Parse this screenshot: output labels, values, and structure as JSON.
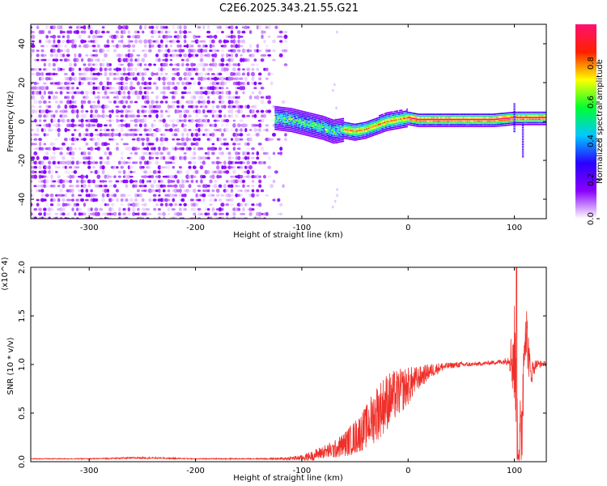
{
  "title": "C2E6.2025.343.21.55.G21",
  "chart_data": [
    {
      "type": "heatmap",
      "name": "spectrogram",
      "xlabel": "Height of straight line (km)",
      "ylabel": "Frequency (Hz)",
      "xlim": [
        -355,
        130
      ],
      "ylim": [
        -50,
        50
      ],
      "xticks": [
        -300,
        -200,
        -100,
        0,
        100
      ],
      "yticks": [
        -40,
        -20,
        0,
        20,
        40
      ],
      "colorbar": {
        "label": "Normalized spectral amplitude",
        "range": [
          0,
          1
        ],
        "ticks": [
          "0.0",
          "0.2",
          "0.4",
          "0.6",
          "0.8"
        ],
        "tick_values": [
          0.0,
          0.2,
          0.4,
          0.6,
          0.8
        ],
        "colormap": [
          "#ffffff",
          "#8a00ff",
          "#2a00ff",
          "#00c8ff",
          "#00ff30",
          "#ffff00",
          "#ff2000",
          "#ff1070"
        ]
      },
      "ridge": {
        "x": [
          -125,
          -110,
          -95,
          -80,
          -70,
          -60,
          -50,
          -40,
          -30,
          -20,
          -10,
          0,
          10,
          20,
          40,
          60,
          80,
          100,
          110,
          130
        ],
        "freq": [
          2,
          1,
          -1,
          -3,
          -5,
          -4,
          -5,
          -4,
          -2,
          0,
          1,
          2,
          1,
          1,
          1,
          1,
          1,
          2,
          2,
          2
        ]
      },
      "noise_region": {
        "x_from": -355,
        "x_to": -115,
        "grid": false
      },
      "features": [
        {
          "x": 100,
          "freq_from": -5,
          "freq_to": 10
        },
        {
          "x": 108,
          "freq_from": -18,
          "freq_to": 0
        },
        {
          "x": -68,
          "freq_from": -50,
          "freq_to": 50
        }
      ]
    },
    {
      "type": "line",
      "name": "snr",
      "xlabel": "Height of straight line (km)",
      "ylabel": "SNR (10 * v/v)",
      "scale_note": "(x10^4)",
      "xlim": [
        -355,
        130
      ],
      "ylim": [
        0,
        2
      ],
      "xticks": [
        -300,
        -200,
        -100,
        0,
        100
      ],
      "yticks": [
        "0.0",
        "0.5",
        "1.0",
        "1.5",
        "2.0"
      ],
      "ytick_values": [
        0,
        0.5,
        1.0,
        1.5,
        2.0
      ],
      "color": "#f0302a",
      "series": [
        {
          "x": [
            -355,
            -300,
            -250,
            -200,
            -150,
            -120,
            -100,
            -90,
            -80,
            -70,
            -60,
            -50,
            -40,
            -30,
            -20,
            -10,
            0,
            10,
            20,
            30,
            40,
            50,
            60,
            70,
            80,
            90,
            95,
            100,
            103,
            106,
            110,
            115,
            120,
            130
          ],
          "y": [
            0.03,
            0.03,
            0.04,
            0.03,
            0.03,
            0.03,
            0.04,
            0.06,
            0.1,
            0.12,
            0.18,
            0.25,
            0.35,
            0.5,
            0.62,
            0.7,
            0.78,
            0.86,
            0.93,
            0.97,
            0.99,
            1.0,
            1.0,
            1.01,
            1.02,
            1.03,
            1.05,
            1.1,
            0.3,
            0.05,
            1.5,
            0.9,
            1.0,
            1.01
          ],
          "noise": [
            0.005,
            0.005,
            0.01,
            0.005,
            0.005,
            0.01,
            0.03,
            0.05,
            0.07,
            0.09,
            0.13,
            0.18,
            0.22,
            0.3,
            0.3,
            0.25,
            0.2,
            0.12,
            0.08,
            0.05,
            0.03,
            0.03,
            0.02,
            0.02,
            0.02,
            0.03,
            0.05,
            0.6,
            0.6,
            0.6,
            0.4,
            0.15,
            0.05,
            0.02
          ]
        }
      ]
    }
  ]
}
